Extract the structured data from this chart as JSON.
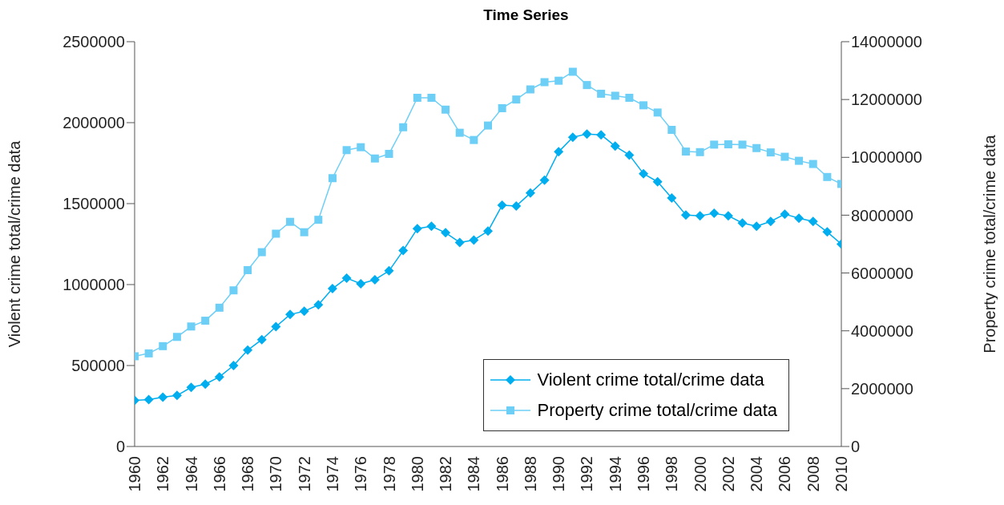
{
  "chart_data": {
    "type": "line",
    "title": "Time Series",
    "ylabel": "Violent crime total/crime data",
    "y2label": "Property crime total/crime data",
    "x": [
      1960,
      1961,
      1962,
      1963,
      1964,
      1965,
      1966,
      1967,
      1968,
      1969,
      1970,
      1971,
      1972,
      1973,
      1974,
      1975,
      1976,
      1977,
      1978,
      1979,
      1980,
      1981,
      1982,
      1983,
      1984,
      1985,
      1986,
      1987,
      1988,
      1989,
      1990,
      1991,
      1992,
      1993,
      1994,
      1995,
      1996,
      1997,
      1998,
      1999,
      2000,
      2001,
      2002,
      2003,
      2004,
      2005,
      2006,
      2007,
      2008,
      2009,
      2010
    ],
    "xlim": [
      1960,
      2010
    ],
    "xticks": [
      1960,
      1962,
      1964,
      1966,
      1968,
      1970,
      1972,
      1974,
      1976,
      1978,
      1980,
      1982,
      1984,
      1986,
      1988,
      1990,
      1992,
      1994,
      1996,
      1998,
      2000,
      2002,
      2004,
      2006,
      2008,
      2010
    ],
    "ylim": [
      0,
      2500000
    ],
    "yticks": [
      0,
      500000,
      1000000,
      1500000,
      2000000,
      2500000
    ],
    "y2lim": [
      0,
      14000000
    ],
    "y2ticks": [
      0,
      2000000,
      4000000,
      6000000,
      8000000,
      10000000,
      12000000,
      14000000
    ],
    "grid": false,
    "legend": "bottom right",
    "series": [
      {
        "name": "Violent crime total/crime data",
        "color": "#00aeef",
        "marker": "diamond",
        "values": [
          285000,
          290000,
          305000,
          315000,
          365000,
          385000,
          430000,
          500000,
          595000,
          660000,
          740000,
          815000,
          835000,
          875000,
          975000,
          1040000,
          1005000,
          1030000,
          1085000,
          1210000,
          1345000,
          1360000,
          1320000,
          1260000,
          1275000,
          1330000,
          1490000,
          1485000,
          1565000,
          1645000,
          1820000,
          1910000,
          1930000,
          1925000,
          1855000,
          1800000,
          1685000,
          1635000,
          1535000,
          1430000,
          1425000,
          1440000,
          1425000,
          1380000,
          1360000,
          1390000,
          1435000,
          1410000,
          1390000,
          1325000,
          1250000
        ]
      },
      {
        "name": "Property crime total/crime data",
        "color": "#6dcff6",
        "marker": "square",
        "axis": "y2",
        "values": [
          3120000,
          3220000,
          3470000,
          3790000,
          4150000,
          4350000,
          4800000,
          5400000,
          6100000,
          6720000,
          7360000,
          7770000,
          7410000,
          7840000,
          9280000,
          10250000,
          10350000,
          9960000,
          10120000,
          11040000,
          12060000,
          12060000,
          11650000,
          10850000,
          10600000,
          11100000,
          11700000,
          12000000,
          12350000,
          12600000,
          12650000,
          12960000,
          12500000,
          12200000,
          12130000,
          12060000,
          11800000,
          11550000,
          10950000,
          10200000,
          10180000,
          10440000,
          10450000,
          10440000,
          10320000,
          10170000,
          10020000,
          9880000,
          9770000,
          9320000,
          9080000
        ]
      }
    ]
  }
}
